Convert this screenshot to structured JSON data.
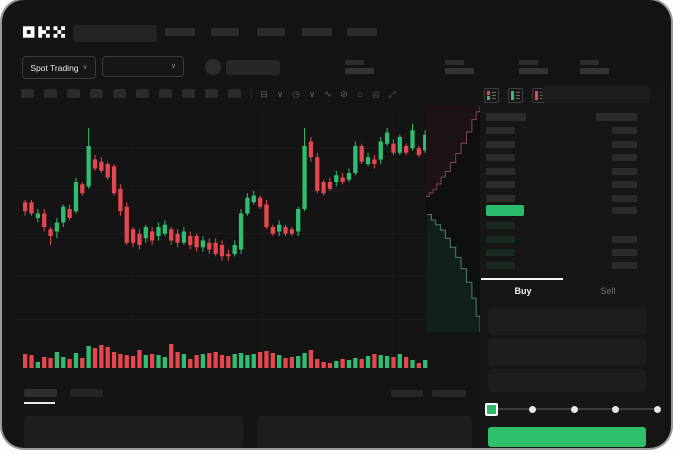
{
  "app": {
    "name": "OKX",
    "logo_text": "OKX"
  },
  "header": {
    "market_selector": {
      "label": "Spot Trading",
      "chevron": "∨"
    },
    "pair_selector": {
      "chevron": "∨"
    },
    "nav_item_count": 5,
    "stat_block_count": 4
  },
  "chart_toolbar": {
    "placeholder_button_count": 10,
    "icons": [
      {
        "name": "candle-style-icon",
        "glyph": "⊟"
      },
      {
        "name": "chevron-down-icon",
        "glyph": "∨"
      },
      {
        "name": "interval-icon",
        "glyph": "◷"
      },
      {
        "name": "chevron-down-icon",
        "glyph": "∨"
      },
      {
        "name": "line-tool-icon",
        "glyph": "∿"
      },
      {
        "name": "draw-tool-icon",
        "glyph": "⊘"
      },
      {
        "name": "snapshot-icon",
        "glyph": "⌂"
      },
      {
        "name": "settings-gear-icon",
        "glyph": "◎"
      },
      {
        "name": "fullscreen-icon",
        "glyph": "⤢"
      }
    ]
  },
  "colors": {
    "up": "#2ebd73",
    "down": "#e4484e",
    "screen_bg": "#141414",
    "chart_bg": "#111213",
    "last_price_green": "#2abc6d",
    "buy_button_green": "#2ec06a",
    "bid_row_tint": "#182a20",
    "placeholder": "#2a2a2a",
    "amount_bar": "#2b2b2b"
  },
  "orderbook": {
    "view_modes": [
      {
        "name": "book-combined-icon"
      },
      {
        "name": "book-bids-icon"
      },
      {
        "name": "book-asks-icon"
      }
    ],
    "ask_rows": [
      {
        "price_w": 40,
        "amount_w": 41
      },
      {
        "price_w": 29,
        "amount_w": 25
      },
      {
        "price_w": 29,
        "amount_w": 25
      },
      {
        "price_w": 29,
        "amount_w": 25
      },
      {
        "price_w": 29,
        "amount_w": 25
      },
      {
        "price_w": 29,
        "amount_w": 25
      },
      {
        "price_w": 29,
        "amount_w": 25
      }
    ],
    "last_price_row": {
      "highlight": true,
      "amount_w": 25
    },
    "bid_rows": [
      {
        "price_w": 29,
        "amount_w": 0
      },
      {
        "price_w": 29,
        "amount_w": 25
      },
      {
        "price_w": 29,
        "amount_w": 25
      },
      {
        "price_w": 29,
        "amount_w": 25
      }
    ]
  },
  "trade_panel": {
    "tabs": [
      {
        "label": "Buy",
        "active": true
      },
      {
        "label": "Sell",
        "active": false
      }
    ],
    "field_count": 3,
    "amount_slider": {
      "stops_pct": [
        0,
        25,
        50,
        75,
        100
      ],
      "selected_pct": 0
    },
    "submit_button": {
      "color": "#2ec06a"
    }
  },
  "bottom_bar": {
    "left_tab_count": 2,
    "active_tab_index": 0,
    "right_placeholder_count": 2,
    "panel_count": 2
  },
  "chart_data": [
    {
      "type": "candlestick",
      "title": "price chart (relative scale 0-100)",
      "ylim": [
        0,
        100
      ],
      "grid": true,
      "candles_ohlc": [
        [
          59,
          60,
          53,
          55
        ],
        [
          59,
          60,
          53,
          54
        ],
        [
          52,
          56,
          50,
          54
        ],
        [
          54,
          56,
          46,
          48
        ],
        [
          47,
          48,
          40,
          44
        ],
        [
          46,
          52,
          43,
          50
        ],
        [
          50,
          58,
          48,
          57
        ],
        [
          56,
          58,
          51,
          52
        ],
        [
          55,
          70,
          54,
          68
        ],
        [
          67,
          68,
          62,
          63
        ],
        [
          66,
          92,
          65,
          84
        ],
        [
          78,
          80,
          73,
          74
        ],
        [
          77,
          79,
          72,
          73
        ],
        [
          76,
          77,
          69,
          70
        ],
        [
          75,
          76,
          62,
          63
        ],
        [
          65,
          67,
          53,
          55
        ],
        [
          57,
          59,
          40,
          41
        ],
        [
          47,
          48,
          39,
          41
        ],
        [
          45,
          47,
          38,
          40
        ],
        [
          43,
          49,
          41,
          48
        ],
        [
          46,
          48,
          40,
          42
        ],
        [
          44,
          50,
          42,
          48
        ],
        [
          45,
          51,
          44,
          49
        ],
        [
          47,
          48,
          40,
          42
        ],
        [
          45,
          47,
          39,
          41
        ],
        [
          41,
          48,
          40,
          46
        ],
        [
          44,
          46,
          38,
          40
        ],
        [
          44,
          45,
          37,
          39
        ],
        [
          39,
          44,
          37,
          42
        ],
        [
          41,
          43,
          36,
          38
        ],
        [
          41,
          43,
          35,
          36
        ],
        [
          40,
          42,
          33,
          35
        ],
        [
          36,
          38,
          33,
          35
        ],
        [
          36,
          42,
          35,
          40
        ],
        [
          38,
          56,
          36,
          54
        ],
        [
          54,
          63,
          53,
          61
        ],
        [
          59,
          64,
          58,
          62
        ],
        [
          61,
          62,
          56,
          57
        ],
        [
          58,
          60,
          47,
          48
        ],
        [
          48,
          49,
          44,
          45
        ],
        [
          46,
          51,
          44,
          49
        ],
        [
          48,
          49,
          44,
          45
        ],
        [
          47,
          48,
          44,
          45
        ],
        [
          46,
          57,
          44,
          56
        ],
        [
          56,
          92,
          55,
          84
        ],
        [
          86,
          88,
          77,
          79
        ],
        [
          79,
          81,
          63,
          64
        ],
        [
          68,
          69,
          62,
          63
        ],
        [
          68,
          70,
          64,
          65
        ],
        [
          68,
          73,
          66,
          71
        ],
        [
          70,
          72,
          67,
          68
        ],
        [
          69,
          74,
          68,
          72
        ],
        [
          72,
          86,
          71,
          84
        ],
        [
          84,
          85,
          76,
          77
        ],
        [
          76,
          81,
          75,
          79
        ],
        [
          78,
          80,
          74,
          76
        ],
        [
          78,
          88,
          76,
          86
        ],
        [
          85,
          92,
          84,
          90
        ],
        [
          85,
          87,
          80,
          81
        ],
        [
          81,
          89,
          80,
          88
        ],
        [
          84,
          85,
          80,
          81
        ],
        [
          83,
          94,
          82,
          91
        ],
        [
          83,
          84,
          79,
          80
        ],
        [
          82,
          91,
          81,
          89
        ]
      ]
    },
    {
      "type": "bar",
      "title": "volume (relative units)",
      "values": [
        14,
        13,
        6,
        11,
        10,
        16,
        11,
        9,
        15,
        10,
        22,
        20,
        23,
        21,
        16,
        14,
        13,
        12,
        18,
        13,
        14,
        13,
        11,
        24,
        16,
        14,
        9,
        13,
        14,
        15,
        16,
        13,
        12,
        14,
        15,
        13,
        14,
        16,
        17,
        15,
        13,
        10,
        11,
        12,
        15,
        18,
        9,
        6,
        5,
        7,
        9,
        8,
        10,
        9,
        12,
        14,
        13,
        12,
        11,
        14,
        11,
        8,
        5,
        8
      ]
    },
    {
      "type": "area",
      "title": "vertical depth",
      "asks_xy": [
        [
          0.0,
          0.4
        ],
        [
          0.06,
          0.385
        ],
        [
          0.13,
          0.37
        ],
        [
          0.2,
          0.345
        ],
        [
          0.28,
          0.315
        ],
        [
          0.36,
          0.29
        ],
        [
          0.45,
          0.25
        ],
        [
          0.55,
          0.21
        ],
        [
          0.65,
          0.165
        ],
        [
          0.75,
          0.115
        ],
        [
          0.85,
          0.06
        ],
        [
          0.93,
          0.025
        ],
        [
          1.0,
          0.0
        ]
      ],
      "bids_xy": [
        [
          0.02,
          0.48
        ],
        [
          0.1,
          0.505
        ],
        [
          0.18,
          0.525
        ],
        [
          0.27,
          0.55
        ],
        [
          0.36,
          0.585
        ],
        [
          0.45,
          0.625
        ],
        [
          0.55,
          0.67
        ],
        [
          0.65,
          0.72
        ],
        [
          0.75,
          0.78
        ],
        [
          0.85,
          0.85
        ],
        [
          0.93,
          0.93
        ],
        [
          1.0,
          1.0
        ]
      ]
    }
  ]
}
